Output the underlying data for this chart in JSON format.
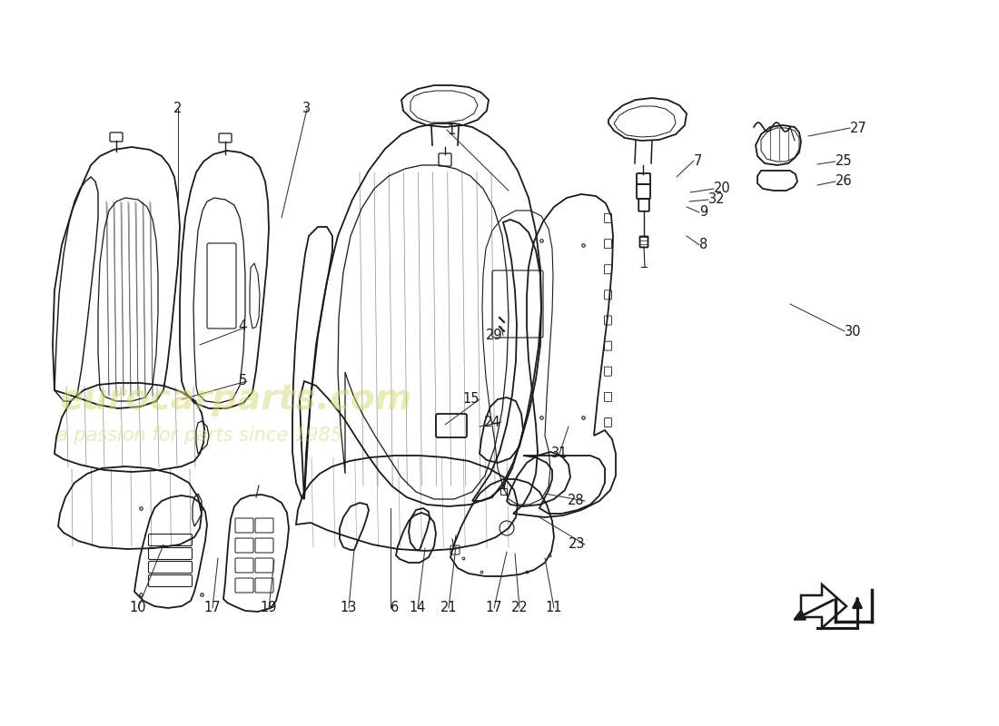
{
  "background_color": "#ffffff",
  "watermark_line1": "eurocarparts.com",
  "watermark_line2": "a passion for parts since 1985",
  "watermark_color": "#d8d870",
  "line_color": "#1a1a1a",
  "text_color": "#1a1a1a",
  "figsize": [
    11.0,
    8.0
  ],
  "dpi": 100,
  "part_labels": {
    "1": [
      492,
      657,
      560,
      590
    ],
    "2": [
      196,
      680,
      196,
      565
    ],
    "3": [
      338,
      680,
      310,
      560
    ],
    "4": [
      272,
      440,
      220,
      420
    ],
    "5": [
      272,
      380,
      200,
      360
    ],
    "6": [
      430,
      130,
      430,
      240
    ],
    "7": [
      764,
      623,
      745,
      605
    ],
    "8": [
      770,
      530,
      756,
      540
    ],
    "9": [
      770,
      566,
      756,
      572
    ],
    "10": [
      152,
      130,
      180,
      200
    ],
    "11": [
      610,
      130,
      600,
      185
    ],
    "13": [
      384,
      130,
      390,
      195
    ],
    "14": [
      460,
      130,
      468,
      196
    ],
    "15": [
      528,
      360,
      490,
      332
    ],
    "17a": [
      234,
      130,
      240,
      185
    ],
    "17b": [
      544,
      130,
      558,
      192
    ],
    "19": [
      296,
      130,
      302,
      183
    ],
    "20": [
      786,
      592,
      760,
      588
    ],
    "21": [
      494,
      130,
      502,
      198
    ],
    "22": [
      572,
      130,
      567,
      190
    ],
    "23": [
      644,
      200,
      594,
      230
    ],
    "24": [
      552,
      335,
      528,
      330
    ],
    "25": [
      920,
      622,
      900,
      619
    ],
    "26": [
      920,
      600,
      900,
      596
    ],
    "27": [
      936,
      659,
      890,
      650
    ],
    "28": [
      644,
      248,
      600,
      256
    ],
    "29": [
      554,
      430,
      552,
      440
    ],
    "30": [
      930,
      435,
      870,
      465
    ],
    "31": [
      616,
      300,
      626,
      330
    ],
    "32": [
      780,
      580,
      759,
      578
    ]
  }
}
